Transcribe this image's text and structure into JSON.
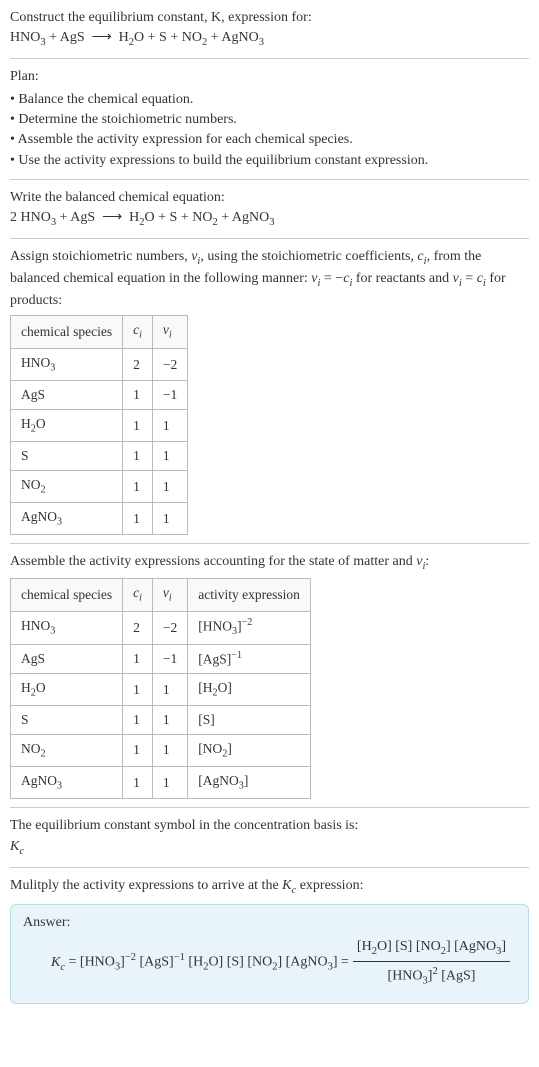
{
  "header": {
    "prompt_line1": "Construct the equilibrium constant, K, expression for:",
    "equation_unbalanced": "HNO₃ + AgS ⟶ H₂O + S + NO₂ + AgNO₃"
  },
  "plan": {
    "title": "Plan:",
    "items": [
      "• Balance the chemical equation.",
      "• Determine the stoichiometric numbers.",
      "• Assemble the activity expression for each chemical species.",
      "• Use the activity expressions to build the equilibrium constant expression."
    ]
  },
  "balanced": {
    "intro": "Write the balanced chemical equation:",
    "equation_balanced": "2 HNO₃ + AgS ⟶ H₂O + S + NO₂ + AgNO₃"
  },
  "stoich": {
    "intro_a": "Assign stoichiometric numbers, νᵢ, using the stoichiometric coefficients, cᵢ, from the balanced chemical equation in the following manner: νᵢ = −cᵢ for reactants and νᵢ = cᵢ for products:",
    "columns": [
      "chemical species",
      "cᵢ",
      "νᵢ"
    ],
    "rows": [
      [
        "HNO₃",
        "2",
        "−2"
      ],
      [
        "AgS",
        "1",
        "−1"
      ],
      [
        "H₂O",
        "1",
        "1"
      ],
      [
        "S",
        "1",
        "1"
      ],
      [
        "NO₂",
        "1",
        "1"
      ],
      [
        "AgNO₃",
        "1",
        "1"
      ]
    ]
  },
  "activity": {
    "intro": "Assemble the activity expressions accounting for the state of matter and νᵢ:",
    "columns": [
      "chemical species",
      "cᵢ",
      "νᵢ",
      "activity expression"
    ],
    "rows": [
      [
        "HNO₃",
        "2",
        "−2",
        "[HNO₃]⁻²"
      ],
      [
        "AgS",
        "1",
        "−1",
        "[AgS]⁻¹"
      ],
      [
        "H₂O",
        "1",
        "1",
        "[H₂O]"
      ],
      [
        "S",
        "1",
        "1",
        "[S]"
      ],
      [
        "NO₂",
        "1",
        "1",
        "[NO₂]"
      ],
      [
        "AgNO₃",
        "1",
        "1",
        "[AgNO₃]"
      ]
    ]
  },
  "kc_symbol": {
    "intro": "The equilibrium constant symbol in the concentration basis is:",
    "symbol": "K_c"
  },
  "multiply": {
    "intro": "Mulitply the activity expressions to arrive at the K_c expression:"
  },
  "answer": {
    "label": "Answer:",
    "lhs": "K_c = [HNO₃]⁻² [AgS]⁻¹ [H₂O] [S] [NO₂] [AgNO₃] = ",
    "frac_num": "[H₂O] [S] [NO₂] [AgNO₃]",
    "frac_den": "[HNO₃]² [AgS]"
  },
  "style": {
    "border_color": "#bbb",
    "answer_bg": "#e8f4f9",
    "answer_border": "#b8dce8",
    "font_size_body": 14,
    "font_size_table": 13.5
  }
}
